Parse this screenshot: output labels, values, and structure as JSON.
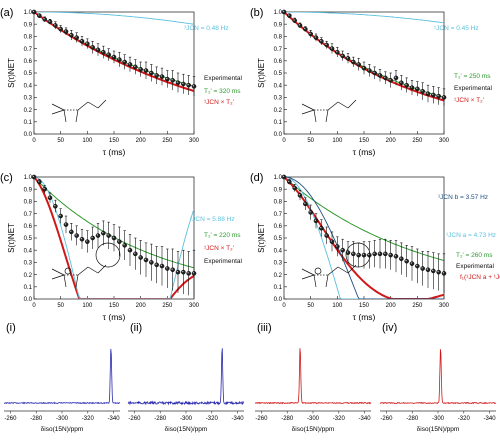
{
  "panels": [
    {
      "label": "(a)",
      "xlabel": "τ (ms)",
      "ylabel": "S(τ)NET",
      "xlim": [
        0,
        300
      ],
      "ylim": [
        0,
        1.0
      ],
      "xticks": [
        0,
        50,
        100,
        150,
        200,
        250,
        300
      ],
      "yticks": [
        "0.0",
        "0.1",
        "0.2",
        "0.3",
        "0.4",
        "0.5",
        "0.6",
        "0.7",
        "0.8",
        "0.9",
        "1.0"
      ],
      "legend": [
        "Experimental",
        "T₂' = 320 ms",
        "¹JCN × T₂'"
      ],
      "annotation": "¹JCN = 0.48 Hz",
      "chart_data": {
        "type": "scatter",
        "title": "",
        "xlabel": "τ (ms)",
        "ylabel": "S(τ)NET",
        "xlim": [
          0,
          300
        ],
        "ylim": [
          0,
          1.0
        ],
        "series": [
          {
            "name": "Experimental",
            "kind": "points",
            "x": [
              0,
              10,
              20,
              30,
              40,
              50,
              60,
              70,
              80,
              90,
              100,
              110,
              120,
              130,
              140,
              150,
              160,
              170,
              180,
              190,
              200,
              210,
              220,
              230,
              240,
              250,
              260,
              270,
              280,
              290,
              300
            ],
            "y": [
              1.0,
              0.97,
              0.94,
              0.92,
              0.89,
              0.86,
              0.84,
              0.81,
              0.79,
              0.76,
              0.74,
              0.71,
              0.69,
              0.67,
              0.65,
              0.63,
              0.61,
              0.59,
              0.57,
              0.55,
              0.53,
              0.52,
              0.5,
              0.48,
              0.47,
              0.45,
              0.44,
              0.42,
              0.41,
              0.4,
              0.39
            ],
            "err": [
              0,
              0.01,
              0.02,
              0.02,
              0.03,
              0.03,
              0.03,
              0.04,
              0.04,
              0.04,
              0.04,
              0.05,
              0.05,
              0.05,
              0.05,
              0.05,
              0.06,
              0.06,
              0.06,
              0.06,
              0.06,
              0.07,
              0.07,
              0.07,
              0.07,
              0.07,
              0.08,
              0.08,
              0.08,
              0.08,
              0.08
            ]
          },
          {
            "name": "T₂' = 320 ms",
            "kind": "exp",
            "T2": 320
          },
          {
            "name": "¹JCN × T₂'",
            "kind": "cosexp",
            "J": 0.48,
            "T2": 320
          },
          {
            "name": "¹JCN = 0.48 Hz",
            "kind": "cos",
            "J": 0.48
          }
        ]
      }
    },
    {
      "label": "(b)",
      "xlabel": "τ (ms)",
      "ylabel": "S(τ)NET",
      "xlim": [
        0,
        300
      ],
      "ylim": [
        0,
        1.0
      ],
      "xticks": [
        0,
        50,
        100,
        150,
        200,
        250,
        300
      ],
      "yticks": [
        "0.0",
        "0.1",
        "0.2",
        "0.3",
        "0.4",
        "0.5",
        "0.6",
        "0.7",
        "0.8",
        "0.9",
        "1.0"
      ],
      "legend": [
        "T₂' = 250 ms",
        "Experimental",
        "¹JCN × T₂'"
      ],
      "annotation": "¹JCN = 0.45 Hz",
      "chart_data": {
        "type": "scatter",
        "title": "",
        "xlabel": "τ (ms)",
        "ylabel": "S(τ)NET",
        "xlim": [
          0,
          300
        ],
        "ylim": [
          0,
          1.0
        ],
        "series": [
          {
            "name": "Experimental",
            "kind": "points",
            "x": [
              0,
              10,
              20,
              30,
              40,
              50,
              60,
              70,
              80,
              90,
              100,
              110,
              120,
              130,
              140,
              150,
              160,
              170,
              180,
              190,
              200,
              210,
              220,
              230,
              240,
              250,
              260,
              270,
              280,
              290,
              300
            ],
            "y": [
              1.0,
              0.97,
              0.93,
              0.89,
              0.86,
              0.82,
              0.79,
              0.76,
              0.73,
              0.7,
              0.67,
              0.64,
              0.62,
              0.59,
              0.57,
              0.54,
              0.52,
              0.5,
              0.48,
              0.46,
              0.44,
              0.46,
              0.42,
              0.4,
              0.38,
              0.37,
              0.35,
              0.33,
              0.32,
              0.31,
              0.3
            ],
            "err": [
              0,
              0.01,
              0.02,
              0.02,
              0.02,
              0.03,
              0.03,
              0.03,
              0.03,
              0.04,
              0.04,
              0.04,
              0.04,
              0.04,
              0.05,
              0.05,
              0.05,
              0.05,
              0.05,
              0.05,
              0.06,
              0.06,
              0.06,
              0.06,
              0.06,
              0.06,
              0.07,
              0.07,
              0.07,
              0.07,
              0.07
            ]
          },
          {
            "name": "T₂' = 250 ms",
            "kind": "exp",
            "T2": 250
          },
          {
            "name": "¹JCN × T₂'",
            "kind": "cosexp",
            "J": 0.45,
            "T2": 250
          },
          {
            "name": "¹JCN = 0.45 Hz",
            "kind": "cos",
            "J": 0.45
          }
        ]
      }
    },
    {
      "label": "(c)",
      "xlabel": "τ (ms)",
      "ylabel": "S(τ)NET",
      "xlim": [
        0,
        300
      ],
      "ylim": [
        0,
        1.0
      ],
      "xticks": [
        0,
        50,
        100,
        150,
        200,
        250,
        300
      ],
      "yticks": [
        "0.0",
        "0.1",
        "0.2",
        "0.3",
        "0.4",
        "0.5",
        "0.6",
        "0.7",
        "0.8",
        "0.9",
        "1.0"
      ],
      "legend": [
        "T₂' = 220 ms",
        "¹JCN × T₂'",
        "Experimental"
      ],
      "annotation": "¹JCN = 5.88 Hz",
      "chart_data": {
        "type": "scatter",
        "title": "",
        "xlabel": "τ (ms)",
        "ylabel": "S(τ)NET",
        "xlim": [
          0,
          300
        ],
        "ylim": [
          0,
          1.0
        ],
        "series": [
          {
            "name": "Experimental",
            "kind": "points",
            "x": [
              0,
              10,
              20,
              30,
              40,
              50,
              60,
              70,
              80,
              90,
              100,
              110,
              120,
              130,
              140,
              150,
              160,
              170,
              180,
              190,
              200,
              210,
              220,
              230,
              240,
              250,
              260,
              270,
              280,
              290,
              300
            ],
            "y": [
              1.0,
              0.96,
              0.9,
              0.83,
              0.76,
              0.68,
              0.61,
              0.55,
              0.52,
              0.49,
              0.47,
              0.5,
              0.52,
              0.54,
              0.52,
              0.5,
              0.47,
              0.44,
              0.4,
              0.37,
              0.34,
              0.32,
              0.3,
              0.28,
              0.27,
              0.25,
              0.24,
              0.22,
              0.22,
              0.21,
              0.21
            ],
            "err": [
              0,
              0.02,
              0.03,
              0.04,
              0.05,
              0.06,
              0.07,
              0.07,
              0.08,
              0.08,
              0.09,
              0.09,
              0.1,
              0.1,
              0.11,
              0.11,
              0.12,
              0.12,
              0.13,
              0.13,
              0.14,
              0.14,
              0.15,
              0.15,
              0.16,
              0.16,
              0.17,
              0.17,
              0.18,
              0.18,
              0.19
            ]
          },
          {
            "name": "T₂' = 220 ms",
            "kind": "exp",
            "T2": 220
          },
          {
            "name": "¹JCN × T₂'",
            "kind": "cosexp",
            "J": 5.88,
            "T2": 220
          },
          {
            "name": "¹JCN = 5.88 Hz",
            "kind": "cos",
            "J": 5.88
          }
        ]
      }
    },
    {
      "label": "(d)",
      "xlabel": "τ (ms)",
      "ylabel": "S(τ)NET",
      "xlim": [
        0,
        300
      ],
      "ylim": [
        0,
        1.0
      ],
      "xticks": [
        0,
        50,
        100,
        150,
        200,
        250,
        300
      ],
      "yticks": [
        "0.0",
        "0.1",
        "0.2",
        "0.3",
        "0.4",
        "0.5",
        "0.6",
        "0.7",
        "0.8",
        "0.9",
        "1.0"
      ],
      "legend": [
        "T₂' = 260 ms",
        "Experimental",
        "f₁(¹JCN a + ¹JCN b) × T₂'"
      ],
      "annotation": "¹JCN a = 4.73 Hz",
      "annotation2": "¹JCN b = 3.57 Hz",
      "chart_data": {
        "type": "scatter",
        "title": "",
        "xlabel": "τ (ms)",
        "ylabel": "S(τ)NET",
        "xlim": [
          0,
          300
        ],
        "ylim": [
          0,
          1.0
        ],
        "series": [
          {
            "name": "Experimental",
            "kind": "points",
            "x": [
              0,
              10,
              20,
              30,
              40,
              50,
              60,
              70,
              80,
              90,
              100,
              110,
              120,
              130,
              140,
              150,
              160,
              170,
              180,
              190,
              200,
              210,
              220,
              230,
              240,
              250,
              260,
              270,
              280,
              290,
              300
            ],
            "y": [
              1.0,
              0.96,
              0.91,
              0.85,
              0.78,
              0.71,
              0.64,
              0.58,
              0.52,
              0.47,
              0.43,
              0.4,
              0.38,
              0.37,
              0.36,
              0.36,
              0.36,
              0.37,
              0.37,
              0.37,
              0.36,
              0.35,
              0.33,
              0.31,
              0.29,
              0.27,
              0.25,
              0.24,
              0.23,
              0.22,
              0.21
            ],
            "err": [
              0,
              0.02,
              0.03,
              0.04,
              0.05,
              0.06,
              0.06,
              0.07,
              0.07,
              0.08,
              0.08,
              0.09,
              0.09,
              0.1,
              0.1,
              0.11,
              0.11,
              0.11,
              0.12,
              0.12,
              0.12,
              0.13,
              0.13,
              0.13,
              0.14,
              0.14,
              0.14,
              0.15,
              0.15,
              0.15,
              0.16
            ]
          },
          {
            "name": "T₂' = 260 ms",
            "kind": "exp",
            "T2": 260
          },
          {
            "name": "f₁(¹JCN a + ¹JCN b) × T₂'",
            "kind": "cos2exp",
            "J": 4.73,
            "J2": 3.57,
            "T2": 260
          },
          {
            "name": "¹JCN a = 4.73 Hz",
            "kind": "cos",
            "J": 4.73
          },
          {
            "name": "¹JCN b = 3.57 Hz",
            "kind": "cos",
            "J": 3.57
          }
        ]
      }
    }
  ],
  "spectra": [
    {
      "label": "(i)",
      "xlabel": "δiso(15N)/ppm",
      "xticks": [
        "-260",
        "-280",
        "-300",
        "-320",
        "-340"
      ],
      "chart_data": {
        "type": "line",
        "xlim": [
          -255,
          -345
        ],
        "peak_ppm": -338,
        "color": "#2a2ab0"
      }
    },
    {
      "label": "(ii)",
      "xlabel": "δiso(15N)/ppm",
      "xticks": [
        "-260",
        "-280",
        "-300",
        "-320",
        "-340"
      ],
      "chart_data": {
        "type": "line",
        "xlim": [
          -255,
          -345
        ],
        "peak_ppm": -328,
        "color": "#2a2ab0"
      }
    },
    {
      "label": "(iii)",
      "xlabel": "δiso(15N)/ppm",
      "xticks": [
        "-260",
        "-280",
        "-300",
        "-320",
        "-340"
      ],
      "chart_data": {
        "type": "line",
        "xlim": [
          -255,
          -345
        ],
        "peak_ppm": -290,
        "color": "#d01818"
      }
    },
    {
      "label": "(iv)",
      "xlabel": "δiso(15N)/ppm",
      "xticks": [
        "-260",
        "-280",
        "-300",
        "-320",
        "-340"
      ],
      "chart_data": {
        "type": "line",
        "xlim": [
          -255,
          -345
        ],
        "peak_ppm": -302,
        "color": "#d01818"
      }
    }
  ],
  "colors": {
    "experimental": "#111111",
    "t2_fit": "#2e9a2e",
    "product_fit": "#d01818",
    "cos_a": "#5bc0de",
    "cos_b": "#1e4f80"
  }
}
